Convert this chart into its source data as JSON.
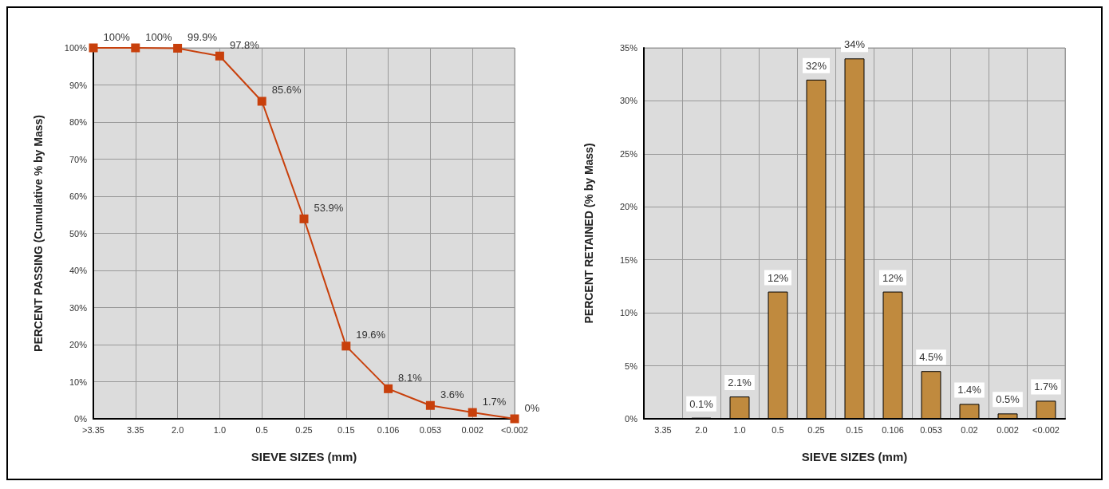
{
  "chart_data": [
    {
      "type": "line",
      "xlabel": "SIEVE SIZES (mm)",
      "ylabel": "PERCENT PASSING (Cumulative % by Mass)",
      "categories": [
        ">3.35",
        "3.35",
        "2.0",
        "1.0",
        "0.5",
        "0.25",
        "0.15",
        "0.106",
        "0.053",
        "0.002",
        "<0.002"
      ],
      "series": [
        {
          "color": "#c8400c",
          "values": [
            100,
            100,
            99.9,
            97.8,
            85.6,
            53.9,
            19.6,
            8.1,
            3.6,
            1.7,
            0
          ],
          "value_labels": [
            "100%",
            "100%",
            "99.9%",
            "97.8%",
            "85.6%",
            "53.9%",
            "19.6%",
            "8.1%",
            "3.6%",
            "1.7%",
            "0%"
          ]
        }
      ],
      "ylim": [
        0,
        100
      ],
      "yticks": [
        {
          "value": 0,
          "label": "0%"
        },
        {
          "value": 10,
          "label": "10%"
        },
        {
          "value": 20,
          "label": "20%"
        },
        {
          "value": 30,
          "label": "30%"
        },
        {
          "value": 40,
          "label": "40%"
        },
        {
          "value": 50,
          "label": "50%"
        },
        {
          "value": 60,
          "label": "60%"
        },
        {
          "value": 70,
          "label": "70%"
        },
        {
          "value": 80,
          "label": "80%"
        },
        {
          "value": 90,
          "label": "90%"
        },
        {
          "value": 100,
          "label": "100%"
        }
      ],
      "grid": true,
      "marker": "square",
      "line_style": "solid"
    },
    {
      "type": "bar",
      "xlabel": "SIEVE SIZES (mm)",
      "ylabel": "PERCENT RETAINED (% by Mass)",
      "categories": [
        "3.35",
        "2.0",
        "1.0",
        "0.5",
        "0.25",
        "0.15",
        "0.106",
        "0.053",
        "0.02",
        "0.002",
        "<0.002"
      ],
      "series": [
        {
          "color": "#c08a3e",
          "values": [
            null,
            0.1,
            2.1,
            12,
            32,
            34,
            12,
            4.5,
            1.4,
            0.5,
            1.7
          ],
          "value_labels": [
            null,
            "0.1%",
            "2.1%",
            "12%",
            "32%",
            "34%",
            "12%",
            "4.5%",
            "1.4%",
            "0.5%",
            "1.7%"
          ]
        }
      ],
      "ylim": [
        0,
        35
      ],
      "yticks": [
        {
          "value": 0,
          "label": "0%"
        },
        {
          "value": 5,
          "label": "5%"
        },
        {
          "value": 10,
          "label": "10%"
        },
        {
          "value": 15,
          "label": "15%"
        },
        {
          "value": 20,
          "label": "20%"
        },
        {
          "value": 25,
          "label": "25%"
        },
        {
          "value": 30,
          "label": "30%"
        },
        {
          "value": 35,
          "label": "35%"
        }
      ],
      "grid": true
    }
  ]
}
